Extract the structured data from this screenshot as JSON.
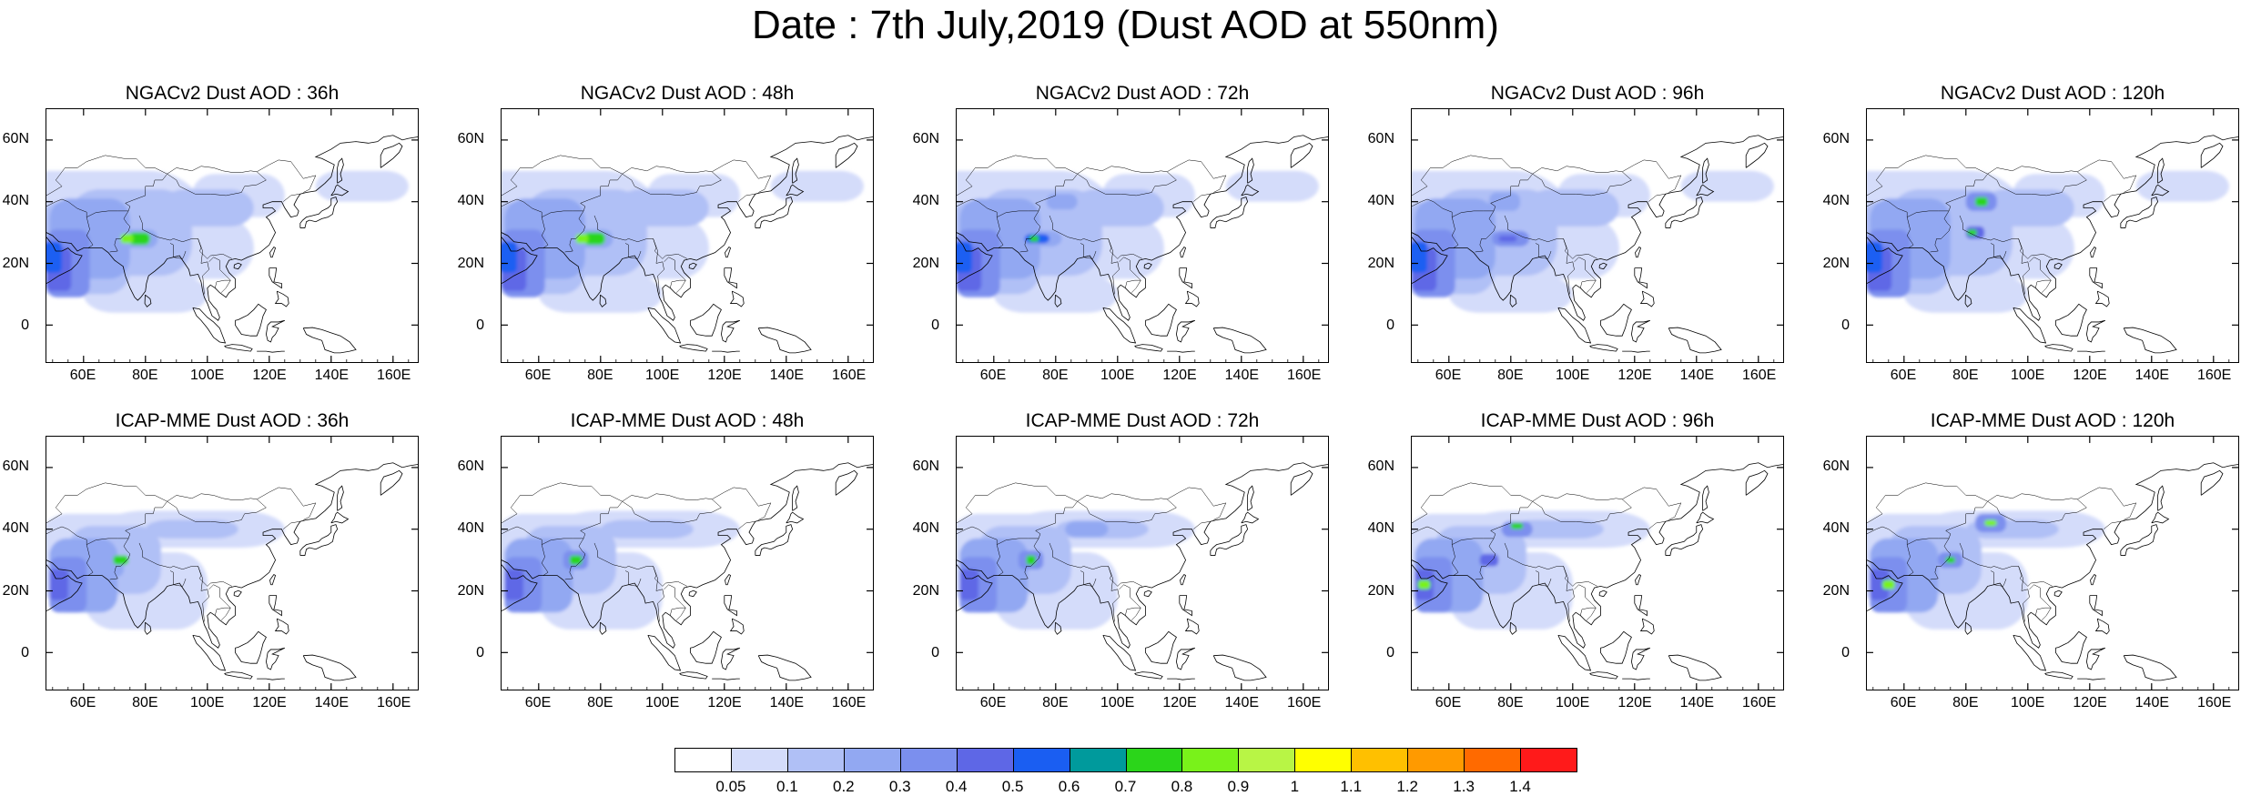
{
  "title": "Date : 7th July,2019 (Dust AOD at 550nm)",
  "panels": [
    {
      "title": "NGACv2 Dust AOD : 36h",
      "model": "NGACv2",
      "lead": "36h"
    },
    {
      "title": "NGACv2 Dust AOD : 48h",
      "model": "NGACv2",
      "lead": "48h"
    },
    {
      "title": "NGACv2 Dust AOD : 72h",
      "model": "NGACv2",
      "lead": "72h"
    },
    {
      "title": "NGACv2 Dust AOD : 96h",
      "model": "NGACv2",
      "lead": "96h"
    },
    {
      "title": "NGACv2 Dust AOD : 120h",
      "model": "NGACv2",
      "lead": "120h"
    },
    {
      "title": "ICAP-MME Dust AOD : 36h",
      "model": "ICAP-MME",
      "lead": "36h"
    },
    {
      "title": "ICAP-MME Dust AOD : 48h",
      "model": "ICAP-MME",
      "lead": "48h"
    },
    {
      "title": "ICAP-MME Dust AOD : 72h",
      "model": "ICAP-MME",
      "lead": "72h"
    },
    {
      "title": "ICAP-MME Dust AOD : 96h",
      "model": "ICAP-MME",
      "lead": "96h"
    },
    {
      "title": "ICAP-MME Dust AOD : 120h",
      "model": "ICAP-MME",
      "lead": "120h"
    }
  ],
  "lat_ticks": [
    "60N",
    "40N",
    "20N",
    "0"
  ],
  "lon_ticks": [
    "60E",
    "80E",
    "100E",
    "120E",
    "140E",
    "160E"
  ],
  "colorbar": {
    "labels": [
      "0.05",
      "0.1",
      "0.2",
      "0.3",
      "0.4",
      "0.5",
      "0.6",
      "0.7",
      "0.8",
      "0.9",
      "1",
      "1.1",
      "1.2",
      "1.3",
      "1.4"
    ],
    "colors": [
      "#ffffff",
      "#d4dcfa",
      "#b0c0f6",
      "#92a8f2",
      "#7b8fee",
      "#5e67e6",
      "#1a5ef2",
      "#009a9c",
      "#2bd51a",
      "#79f21a",
      "#b8f545",
      "#ffff00",
      "#ffc000",
      "#ff9a00",
      "#ff6a00",
      "#ff1a1a"
    ]
  }
}
